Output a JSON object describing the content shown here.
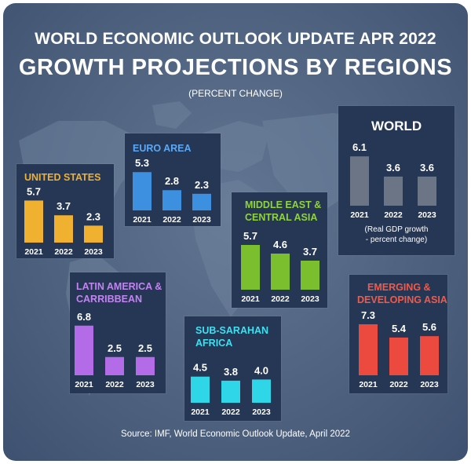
{
  "header": {
    "title_line1": "WORLD ECONOMIC OUTLOOK UPDATE APR 2022",
    "title_line2": "GROWTH PROJECTIONS BY REGIONS",
    "subtitle": "(PERCENT CHANGE)"
  },
  "footer": {
    "source": "Source: IMF, World Economic Outlook Update, April 2022"
  },
  "colors": {
    "background": "#52667f",
    "panel": "#263755",
    "united_states": "#f0b030",
    "euro_area": "#3d8fe0",
    "world": "#6b7585",
    "middle_east": "#7cbf2e",
    "latin_america": "#b46be8",
    "sub_saharan": "#2fd6e8",
    "emerging_asia": "#ec4a3e"
  },
  "chart_data": [
    {
      "type": "bar",
      "title": "UNITED STATES",
      "categories": [
        "2021",
        "2022",
        "2023"
      ],
      "values": [
        5.7,
        3.7,
        2.3
      ],
      "color": "#f0b030",
      "title_color": "#f0b030"
    },
    {
      "type": "bar",
      "title": "EURO AREA",
      "categories": [
        "2021",
        "2022",
        "2023"
      ],
      "values": [
        5.3,
        2.8,
        2.3
      ],
      "color": "#3d8fe0",
      "title_color": "#5aa8f5"
    },
    {
      "type": "bar",
      "title": "WORLD",
      "categories": [
        "2021",
        "2022",
        "2023"
      ],
      "values": [
        6.1,
        3.6,
        3.6
      ],
      "color": "#6b7585",
      "title_color": "#ffffff",
      "note": [
        "(Real GDP growth",
        "- percent change)"
      ]
    },
    {
      "type": "bar",
      "title": [
        "MIDDLE EAST &",
        "CENTRAL ASIA"
      ],
      "categories": [
        "2021",
        "2022",
        "2023"
      ],
      "values": [
        5.7,
        4.6,
        3.7
      ],
      "color": "#7cbf2e",
      "title_color": "#8fd43a"
    },
    {
      "type": "bar",
      "title": [
        "LATIN AMERICA &",
        "CARRIBBEAN"
      ],
      "categories": [
        "2021",
        "2022",
        "2023"
      ],
      "values": [
        6.8,
        2.5,
        2.5
      ],
      "color": "#b46be8",
      "title_color": "#c184f0"
    },
    {
      "type": "bar",
      "title": [
        "SUB-SARAHAN",
        "AFRICA"
      ],
      "categories": [
        "2021",
        "2022",
        "2023"
      ],
      "values": [
        4.5,
        3.8,
        4.0
      ],
      "color": "#2fd6e8",
      "title_color": "#3fe0f0"
    },
    {
      "type": "bar",
      "title": [
        "EMERGING &",
        "DEVELOPING ASIA"
      ],
      "categories": [
        "2021",
        "2022",
        "2023"
      ],
      "values": [
        7.3,
        5.4,
        5.6
      ],
      "color": "#ec4a3e",
      "title_color": "#f05a4a"
    }
  ]
}
